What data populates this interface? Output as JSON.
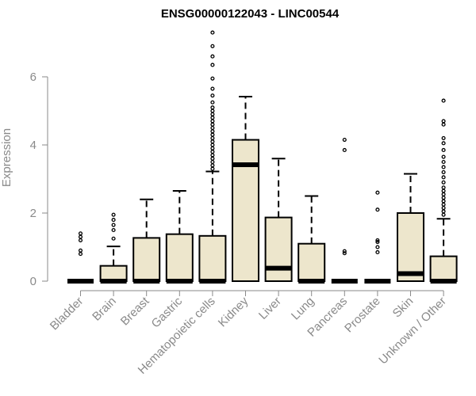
{
  "chart_data": {
    "type": "boxplot",
    "title": "ENSG00000122043 - LINC00544",
    "xlabel": "",
    "ylabel": "Expression",
    "ylim": [
      0,
      7.3
    ],
    "yticks": [
      0,
      2,
      4,
      6
    ],
    "grid": false,
    "box_fill": "#ede6cc",
    "box_stroke": "#000000",
    "axis_color": "#8a8a8a",
    "categories": [
      "Bladder",
      "Brain",
      "Breast",
      "Gastric",
      "Hematopoietic cells",
      "Kidney",
      "Liver",
      "Lung",
      "Pancreas",
      "Prostate",
      "Skin",
      "Unknown / Other"
    ],
    "boxes": [
      {
        "q1": 0,
        "median": 0,
        "q3": 0,
        "whisker_low": 0,
        "whisker_high": 0,
        "outliers": [
          0.8,
          0.9,
          1.2,
          1.3,
          1.4
        ]
      },
      {
        "q1": 0,
        "median": 0,
        "q3": 0.45,
        "whisker_low": 0,
        "whisker_high": 1.02,
        "outliers": [
          1.25,
          1.5,
          1.65,
          1.8,
          1.95
        ]
      },
      {
        "q1": 0,
        "median": 0,
        "q3": 1.27,
        "whisker_low": 0,
        "whisker_high": 2.4,
        "outliers": []
      },
      {
        "q1": 0,
        "median": 0,
        "q3": 1.38,
        "whisker_low": 0,
        "whisker_high": 2.65,
        "outliers": []
      },
      {
        "q1": 0,
        "median": 0,
        "q3": 1.33,
        "whisker_low": 0,
        "whisker_high": 3.22,
        "outliers": [
          3.3,
          3.4,
          3.5,
          3.6,
          3.7,
          3.8,
          3.9,
          4.0,
          4.1,
          4.2,
          4.3,
          4.4,
          4.5,
          4.6,
          4.7,
          4.8,
          4.9,
          5.0,
          5.1,
          5.25,
          5.45,
          5.65,
          5.95,
          6.35,
          6.6,
          6.9,
          7.3
        ]
      },
      {
        "q1": 0,
        "median": 3.42,
        "q3": 4.15,
        "whisker_low": 0,
        "whisker_high": 5.42,
        "outliers": []
      },
      {
        "q1": 0,
        "median": 0.38,
        "q3": 1.87,
        "whisker_low": 0,
        "whisker_high": 3.6,
        "outliers": []
      },
      {
        "q1": 0,
        "median": 0,
        "q3": 1.1,
        "whisker_low": 0,
        "whisker_high": 2.5,
        "outliers": []
      },
      {
        "q1": 0,
        "median": 0,
        "q3": 0,
        "whisker_low": 0,
        "whisker_high": 0,
        "outliers": [
          0.82,
          0.88,
          3.85,
          4.15
        ]
      },
      {
        "q1": 0,
        "median": 0,
        "q3": 0,
        "whisker_low": 0,
        "whisker_high": 0,
        "outliers": [
          0.85,
          1.0,
          1.15,
          1.2,
          2.1,
          2.6
        ]
      },
      {
        "q1": 0,
        "median": 0.22,
        "q3": 2.0,
        "whisker_low": 0,
        "whisker_high": 3.15,
        "outliers": []
      },
      {
        "q1": 0,
        "median": 0,
        "q3": 0.73,
        "whisker_low": 0,
        "whisker_high": 1.83,
        "outliers": [
          1.95,
          2.05,
          2.15,
          2.25,
          2.35,
          2.45,
          2.55,
          2.65,
          2.75,
          2.9,
          3.05,
          3.2,
          3.35,
          3.5,
          3.65,
          3.85,
          4.05,
          4.2,
          4.6,
          4.7,
          5.3
        ]
      }
    ]
  }
}
